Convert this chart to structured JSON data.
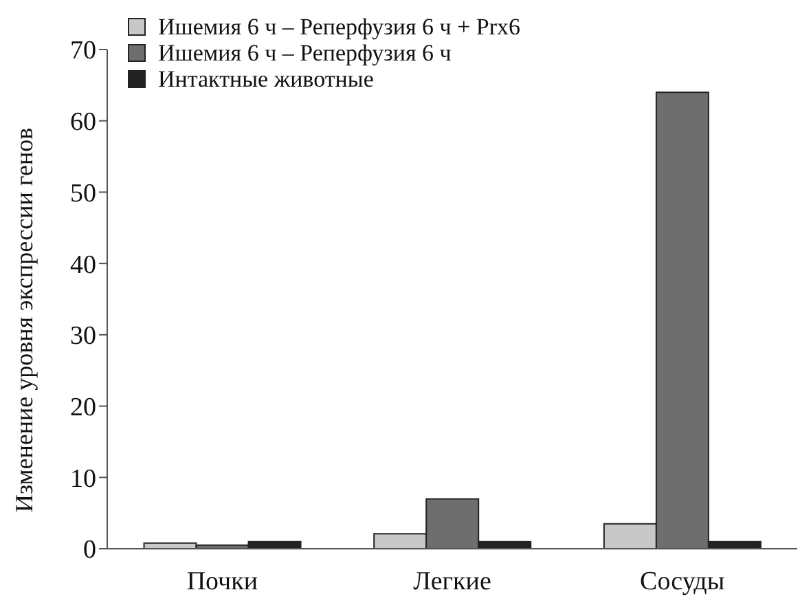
{
  "chart_data": {
    "type": "bar",
    "ylabel": "Изменение уровня экспрессии генов",
    "categories": [
      "Почки",
      "Легкие",
      "Сосуды"
    ],
    "series": [
      {
        "name": "Ишемия 6 ч – Реперфузия 6 ч + Prx6",
        "color": "#c8c8c8",
        "values": [
          0.8,
          2.1,
          3.5
        ]
      },
      {
        "name": "Ишемия 6 ч – Реперфузия 6 ч",
        "color": "#6e6e6e",
        "values": [
          0.5,
          7.0,
          64
        ]
      },
      {
        "name": "Интактные животные",
        "color": "#222222",
        "values": [
          1.0,
          1.0,
          1.0
        ]
      }
    ],
    "ylim": [
      0,
      70
    ],
    "yticks": [
      0,
      10,
      20,
      30,
      40,
      50,
      60,
      70
    ],
    "grid": false,
    "legend": "top left"
  }
}
